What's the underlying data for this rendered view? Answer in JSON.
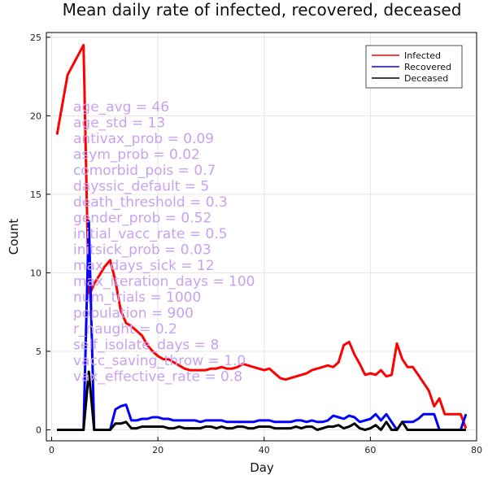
{
  "chart_data": {
    "type": "line",
    "title": "Mean daily rate of infected, recovered, deceased",
    "xlabel": "Day",
    "ylabel": "Count",
    "xlim": [
      -1,
      80
    ],
    "ylim": [
      -0.7,
      25.3
    ],
    "xticks": [
      0,
      20,
      40,
      60,
      80
    ],
    "yticks": [
      0,
      5,
      10,
      15,
      20,
      25
    ],
    "grid": true,
    "legend_position": "top-right",
    "series": [
      {
        "name": "Infected",
        "color": "#ff0000",
        "x": [
          1,
          3,
          6,
          7,
          8,
          10,
          11,
          12,
          13,
          14,
          15,
          16,
          17,
          18,
          19,
          20,
          21,
          22,
          23,
          24,
          25,
          26,
          27,
          28,
          29,
          30,
          31,
          32,
          33,
          34,
          35,
          36,
          37,
          38,
          39,
          40,
          41,
          42,
          43,
          44,
          45,
          46,
          47,
          48,
          49,
          50,
          51,
          52,
          53,
          54,
          55,
          56,
          57,
          58,
          59,
          60,
          61,
          62,
          63,
          64,
          65,
          66,
          67,
          68,
          69,
          70,
          71,
          72,
          73,
          74,
          75,
          76,
          77,
          78
        ],
        "values": [
          18.8,
          22.6,
          24.5,
          8.5,
          9.3,
          10.4,
          10.8,
          9.5,
          7.6,
          6.8,
          6.6,
          6.3,
          6.0,
          5.4,
          5.0,
          4.7,
          4.5,
          4.5,
          4.3,
          4.1,
          3.9,
          3.8,
          3.8,
          3.8,
          3.8,
          3.9,
          3.9,
          4.0,
          3.9,
          3.9,
          4.0,
          4.2,
          4.1,
          4.0,
          3.9,
          3.8,
          3.9,
          3.6,
          3.3,
          3.2,
          3.3,
          3.4,
          3.5,
          3.6,
          3.8,
          3.9,
          4.0,
          4.1,
          4.0,
          4.3,
          5.4,
          5.6,
          4.8,
          4.2,
          3.5,
          3.6,
          3.5,
          3.8,
          3.4,
          3.5,
          5.5,
          4.5,
          4.0,
          4.0,
          3.5,
          3.0,
          2.5,
          1.5,
          2.0,
          1.0,
          1.0,
          1.0,
          1.0,
          0.1
        ]
      },
      {
        "name": "Recovered",
        "color": "#0000ff",
        "x": [
          1,
          2,
          3,
          4,
          5,
          6,
          7,
          8,
          9,
          10,
          11,
          12,
          13,
          14,
          15,
          16,
          17,
          18,
          19,
          20,
          21,
          22,
          23,
          24,
          25,
          26,
          27,
          28,
          29,
          30,
          31,
          32,
          33,
          34,
          35,
          36,
          37,
          38,
          39,
          40,
          41,
          42,
          43,
          44,
          45,
          46,
          47,
          48,
          49,
          50,
          51,
          52,
          53,
          54,
          55,
          56,
          57,
          58,
          59,
          60,
          61,
          62,
          63,
          64,
          65,
          66,
          67,
          68,
          69,
          70,
          71,
          72,
          73,
          74,
          75,
          76,
          77,
          78
        ],
        "values": [
          0,
          0,
          0,
          0,
          0,
          0,
          13.3,
          0,
          0,
          0,
          0,
          1.3,
          1.5,
          1.6,
          0.6,
          0.6,
          0.7,
          0.7,
          0.8,
          0.8,
          0.7,
          0.7,
          0.6,
          0.6,
          0.6,
          0.6,
          0.6,
          0.5,
          0.6,
          0.6,
          0.6,
          0.6,
          0.5,
          0.5,
          0.5,
          0.5,
          0.5,
          0.5,
          0.6,
          0.6,
          0.6,
          0.5,
          0.5,
          0.5,
          0.5,
          0.6,
          0.6,
          0.5,
          0.6,
          0.5,
          0.5,
          0.6,
          0.9,
          0.8,
          0.7,
          0.9,
          0.8,
          0.5,
          0.6,
          0.7,
          1.0,
          0.6,
          1.0,
          0.5,
          0.0,
          0.5,
          0.5,
          0.5,
          0.7,
          1.0,
          1.0,
          1.0,
          0.0,
          0.0,
          0.0,
          0.0,
          0.0,
          1.0
        ]
      },
      {
        "name": "Deceased",
        "color": "#000000",
        "x": [
          1,
          2,
          3,
          4,
          5,
          6,
          7,
          8,
          9,
          10,
          11,
          12,
          13,
          14,
          15,
          16,
          17,
          18,
          19,
          20,
          21,
          22,
          23,
          24,
          25,
          26,
          27,
          28,
          29,
          30,
          31,
          32,
          33,
          34,
          35,
          36,
          37,
          38,
          39,
          40,
          41,
          42,
          43,
          44,
          45,
          46,
          47,
          48,
          49,
          50,
          51,
          52,
          53,
          54,
          55,
          56,
          57,
          58,
          59,
          60,
          61,
          62,
          63,
          64,
          65,
          66,
          67,
          68,
          69,
          70,
          71,
          72,
          73,
          74,
          75,
          76,
          77,
          78
        ],
        "values": [
          0,
          0,
          0,
          0,
          0,
          0,
          3.7,
          0,
          0,
          0,
          0,
          0.4,
          0.4,
          0.5,
          0.1,
          0.1,
          0.2,
          0.2,
          0.2,
          0.2,
          0.2,
          0.1,
          0.1,
          0.2,
          0.1,
          0.1,
          0.1,
          0.1,
          0.2,
          0.2,
          0.1,
          0.2,
          0.1,
          0.1,
          0.2,
          0.2,
          0.1,
          0.1,
          0.2,
          0.2,
          0.2,
          0.1,
          0.1,
          0.1,
          0.1,
          0.2,
          0.1,
          0.2,
          0.2,
          0.0,
          0.1,
          0.2,
          0.2,
          0.3,
          0.1,
          0.2,
          0.4,
          0.1,
          0.0,
          0.1,
          0.3,
          0.0,
          0.5,
          0.0,
          0.0,
          0.5,
          0.0,
          0.0,
          0.0,
          0.0,
          0.0,
          0.0,
          0.0,
          0.0,
          0.0,
          0.0,
          0.0,
          0.0
        ]
      }
    ],
    "annotations": [
      "age_avg = 46",
      "age_std = 13",
      "antivax_prob = 0.09",
      "asym_prob = 0.02",
      "comorbid_pois = 0.7",
      "dayssic_default = 5",
      "death_threshold = 0.3",
      "gender_prob = 0.52",
      "initial_vacc_rate = 0.5",
      "initsick_prob = 0.03",
      "max_days_sick = 12",
      "max_iteration_days = 100",
      "num_trials = 1000",
      "population = 900",
      "r_naught = 0.2",
      "self_isolate_days = 8",
      "vacc_saving_throw = 1.0",
      "vax_effective_rate = 0.8"
    ]
  }
}
